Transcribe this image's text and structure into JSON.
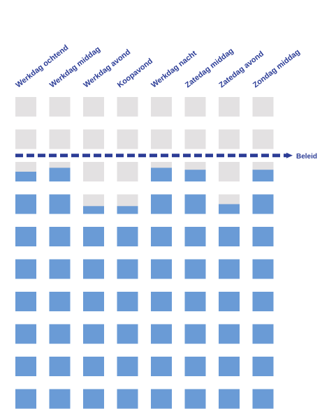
{
  "chart_data": {
    "type": "waffle-column",
    "categories": [
      "Werkdag ochtend",
      "Werkdag middag",
      "Werkdag avond",
      "Koopavond",
      "Werkdag nacht",
      "Zatedag middag",
      "Zatedag avond",
      "Zondag middag"
    ],
    "cells_per_column": 10,
    "values": [
      7.5,
      7.7,
      6.4,
      6.4,
      7.7,
      7.6,
      6.5,
      7.6
    ],
    "policy": {
      "label": "Beleid",
      "value": 8
    },
    "colors": {
      "filled": "#6a9bd6",
      "empty": "#e3e1e2",
      "label": "#2b3c96",
      "policy_line": "#2b3c96"
    }
  }
}
